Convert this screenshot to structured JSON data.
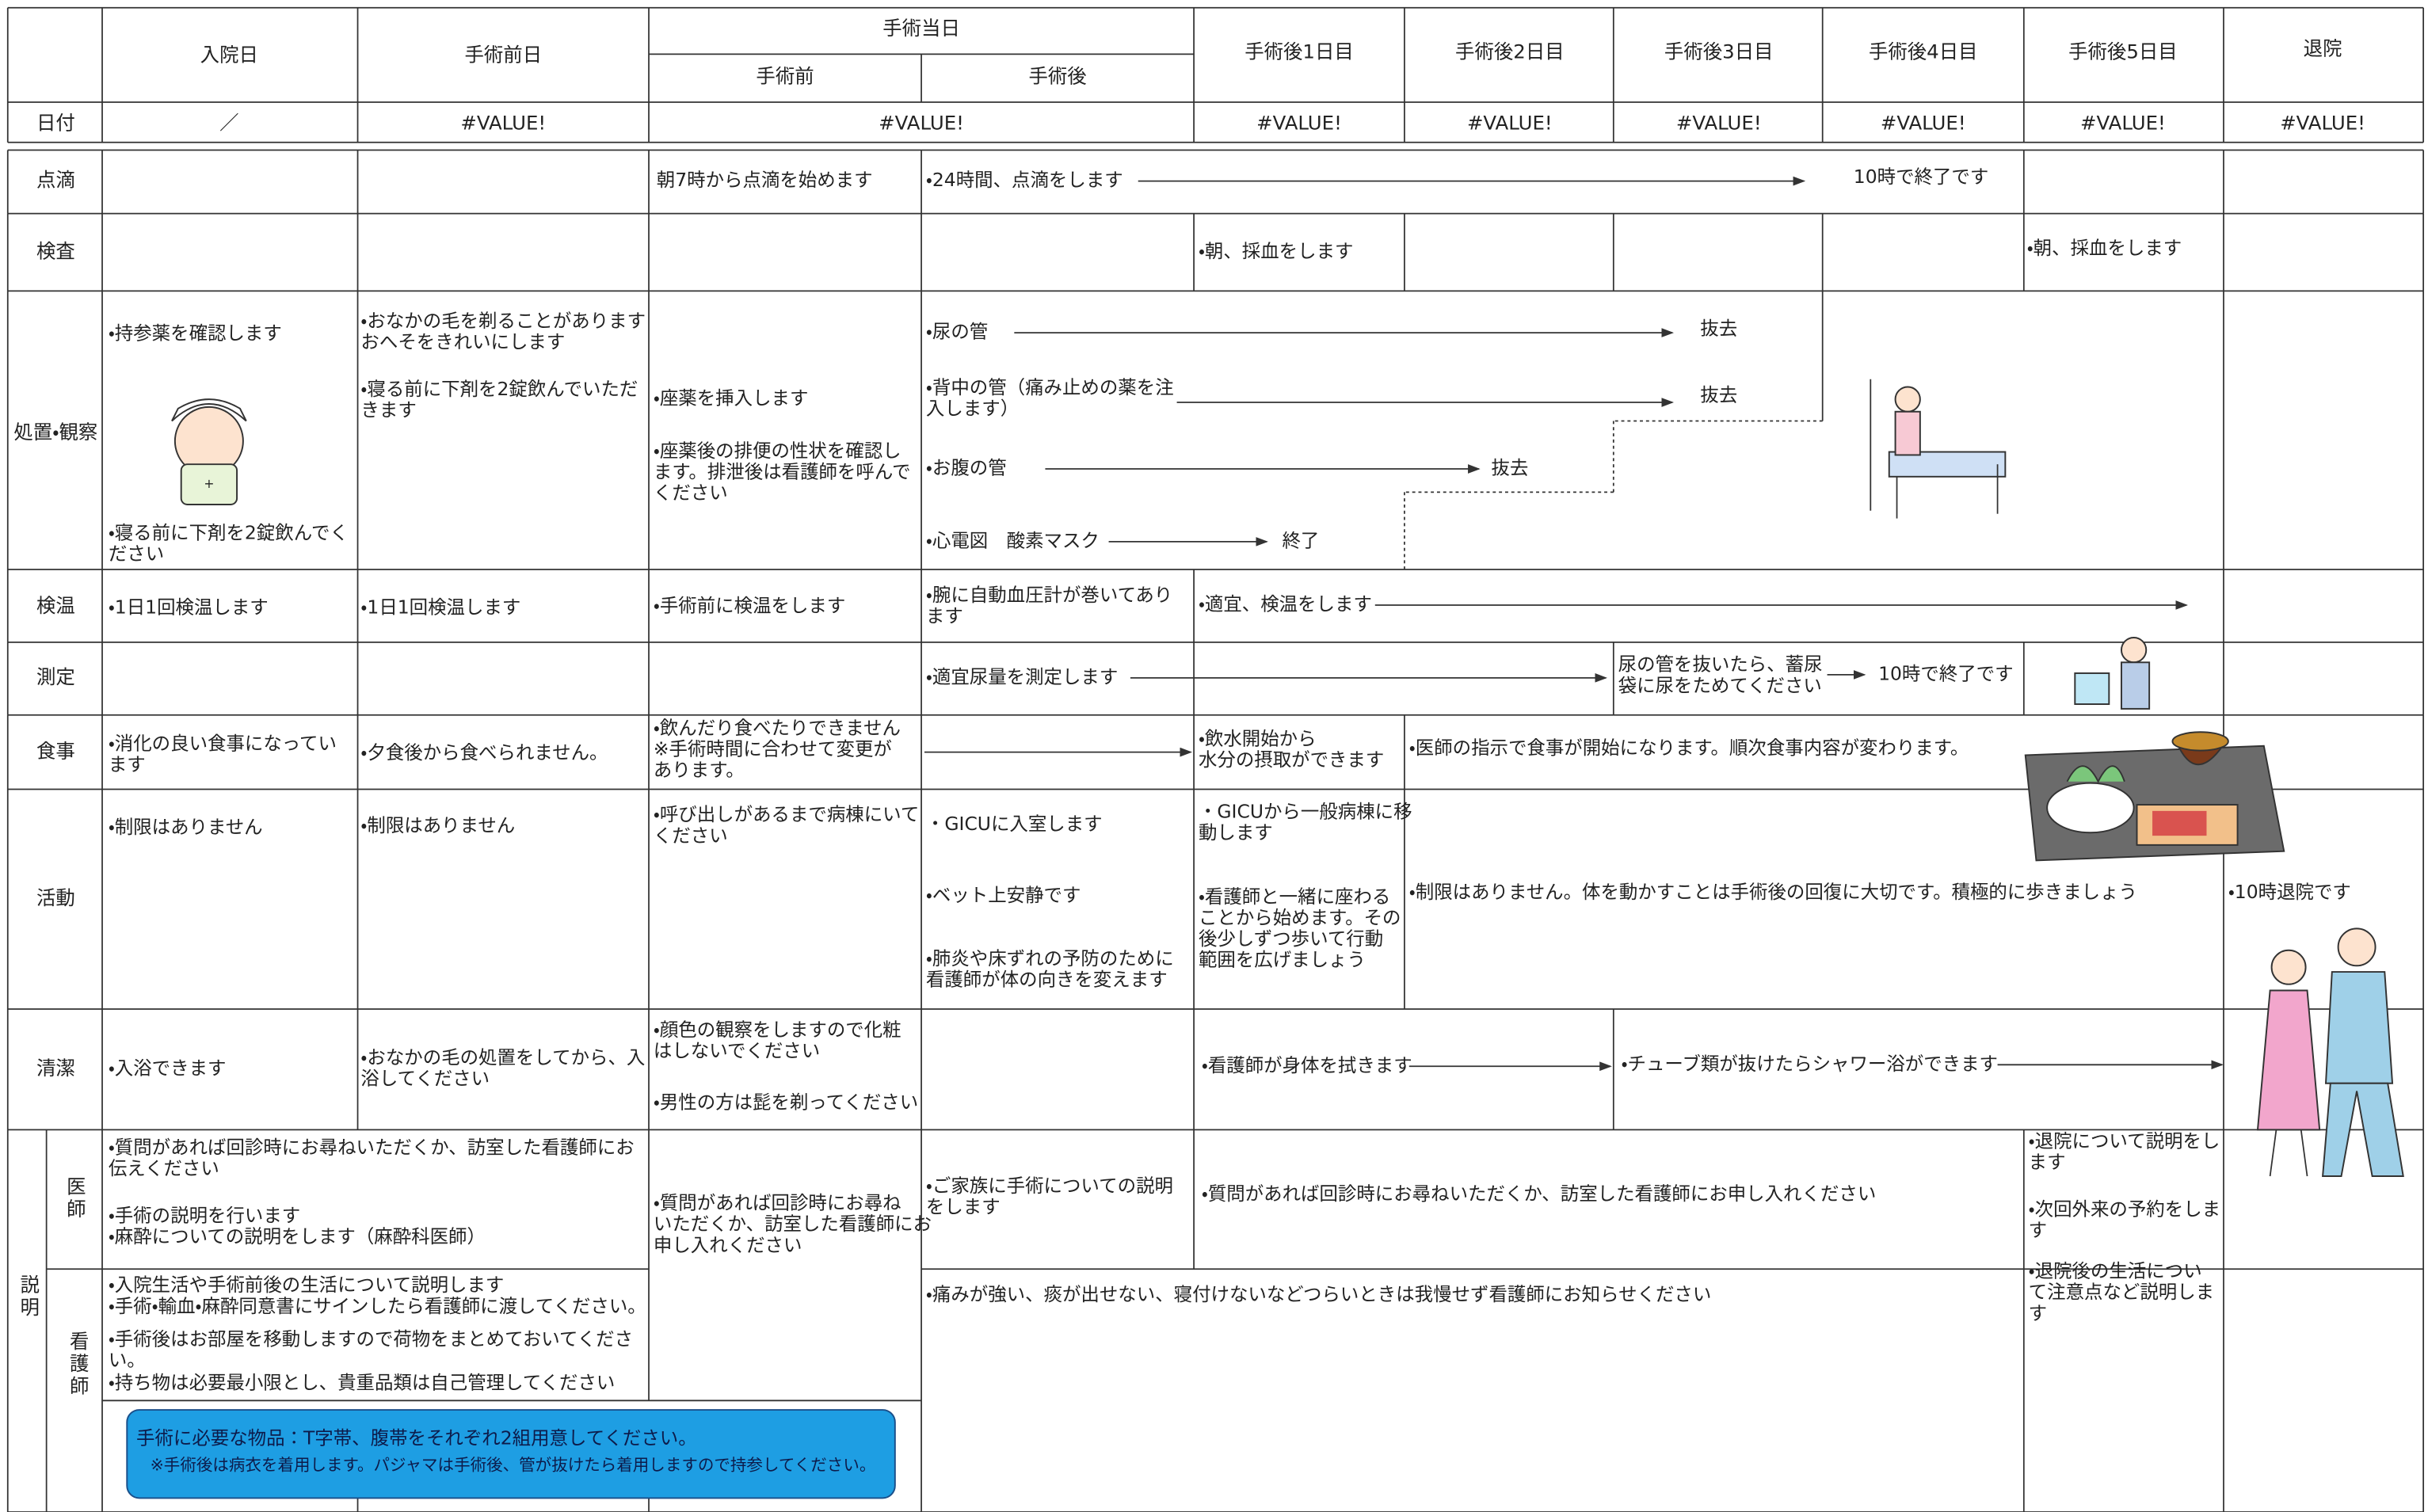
{
  "header": {
    "admission_day": "入院日",
    "pre_op_day": "手術前日",
    "surgery_day": "手術当日",
    "before_surgery": "手術前",
    "after_surgery": "手術後",
    "post_op_days": [
      "手術後1日目",
      "手術後2日目",
      "手術後3日目",
      "手術後4日目",
      "手術後5日目"
    ],
    "discharge": "退院"
  },
  "date_row": {
    "label": "日付",
    "values": [
      "／",
      "#VALUE!",
      "#VALUE!",
      "#VALUE!",
      "#VALUE!",
      "#VALUE!",
      "#VALUE!",
      "#VALUE!",
      "#VALUE!"
    ]
  },
  "rows": [
    {
      "label": "点滴",
      "items": [
        [
          "朝7時から点滴を始めます"
        ],
        [
          "・24時間、点滴をします"
        ],
        [
          "10時で終了です"
        ]
      ]
    },
    {
      "label": "検査",
      "items": [
        [
          "・朝、採血をします"
        ],
        [
          "・朝、採血をします"
        ]
      ]
    },
    {
      "label": "処置・観察",
      "items": [
        [
          "・持参薬を確認します"
        ],
        [
          "・寝る前に下剤を2錠飲んでく",
          "ださい"
        ],
        [
          "・おなかの毛を剃ることがあります",
          "おへそをきれいにします"
        ],
        [
          "・寝る前に下剤を2錠飲んでいただ",
          "きます"
        ],
        [
          "・座薬を挿入します"
        ],
        [
          "・座薬後の排便の性状を確認し",
          "ます。排泄後は看護師を呼んで",
          "ください"
        ],
        [
          "・尿の管"
        ],
        [
          "抜去"
        ],
        [
          "・背中の管（痛み止めの薬を注",
          "入します）"
        ],
        [
          "抜去"
        ],
        [
          "・お腹の管"
        ],
        [
          "抜去"
        ],
        [
          "・心電図　酸素マスク"
        ],
        [
          "終了"
        ]
      ]
    },
    {
      "label": "検温",
      "items": [
        [
          "・1日1回検温します"
        ],
        [
          "・1日1回検温します"
        ],
        [
          "・手術前に検温をします"
        ],
        [
          "・腕に自動血圧計が巻いてあり",
          "ます"
        ],
        [
          "・適宜、検温をします"
        ]
      ]
    },
    {
      "label": "測定",
      "items": [
        [
          "・適宜尿量を測定します"
        ],
        [
          "尿の管を抜いたら、蓄尿",
          "袋に尿をためてください"
        ],
        [
          "10時で終了です"
        ]
      ]
    },
    {
      "label": "食事",
      "items": [
        [
          "・消化の良い食事になってい",
          "ます"
        ],
        [
          "・夕食後から食べられません。"
        ],
        [
          "・飲んだり食べたりできません",
          "※手術時間に合わせて変更が",
          "あります。"
        ],
        [
          "・飲水開始から",
          "水分の摂取ができます"
        ],
        [
          "・医師の指示で食事が開始になります。順次食事内容が変わります。"
        ]
      ]
    },
    {
      "label": "活動",
      "items": [
        [
          "・制限はありません"
        ],
        [
          "・制限はありません"
        ],
        [
          "・呼び出しがあるまで病棟にいて",
          "ください"
        ],
        [
          "・GICUに入室します"
        ],
        [
          "・ベット上安静です"
        ],
        [
          "・肺炎や床ずれの予防のために",
          "看護師が体の向きを変えます"
        ],
        [
          "・GICUから一般病棟に移",
          "動します"
        ],
        [
          "・看護師と一緒に座わる",
          "ことから始めます。その",
          "後少しずつ歩いて行動",
          "範囲を広げましょう"
        ],
        [
          "・制限はありません。体を動かすことは手術後の回復に大切です。積極的に歩きましょう"
        ],
        [
          "・10時退院です"
        ]
      ]
    },
    {
      "label": "清潔",
      "items": [
        [
          "・入浴できます"
        ],
        [
          "・おなかの毛の処置をしてから、入",
          "浴してください"
        ],
        [
          "・顔色の観察をしますので化粧",
          "はしないでください"
        ],
        [
          "・男性の方は髭を剃ってください"
        ],
        [
          "・看護師が身体を拭きます"
        ],
        [
          "・チューブ類が抜けたらシャワー浴ができます"
        ]
      ]
    }
  ],
  "explanation": {
    "label": "説明",
    "doctor": {
      "label": "医師",
      "items": [
        [
          "・質問があれば回診時にお尋ねいただくか、訪室した看護師にお",
          "伝えください"
        ],
        [
          "・手術の説明を行います",
          "・麻酔についての説明をします（麻酔科医師）"
        ],
        [
          "・質問があれば回診時にお尋ね",
          "いただくか、訪室した看護師にお",
          "申し入れください"
        ],
        [
          "・ご家族に手術についての説明",
          "をします"
        ],
        [
          "・質問があれば回診時にお尋ねいただくか、訪室した看護師にお申し入れください"
        ],
        [
          "・退院について説明をし",
          "ます"
        ],
        [
          "・次回外来の予約をしま",
          "す"
        ]
      ]
    },
    "nurse": {
      "label": "看護師",
      "items": [
        [
          "・入院生活や手術前後の生活について説明します",
          "・手術・輸血・麻酔同意書にサインしたら看護師に渡してください。"
        ],
        [
          "・手術後はお部屋を移動しますので荷物をまとめておいてくださ",
          "い。"
        ],
        [
          "・持ち物は必要最小限とし、貴重品類は自己管理してください"
        ],
        [
          "・痛みが強い、痰が出せない、寝付けないなどつらいときは我慢せず看護師にお知らせください"
        ],
        [
          "・退院後の生活につい",
          "て注意点など説明しま",
          "す"
        ]
      ]
    },
    "supplies_note": [
      "手術に必要な物品：T字帯、腹帯をそれぞれ2組用意してください。",
      "※手術後は病衣を着用します。パジャマは手術後、管が抜けたら着用しますので持参してください。"
    ]
  }
}
